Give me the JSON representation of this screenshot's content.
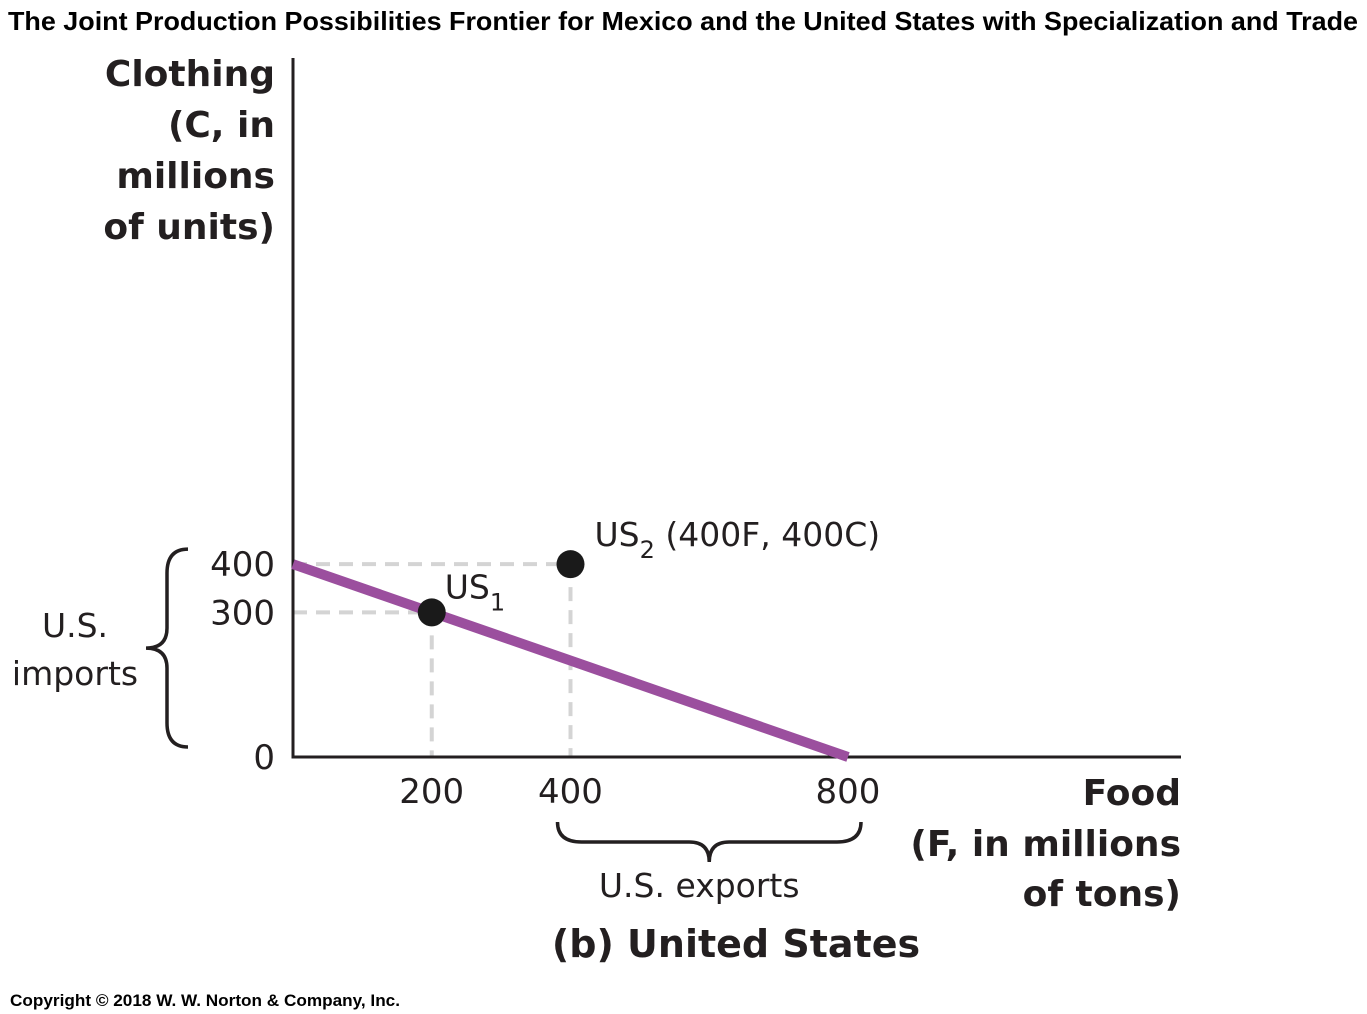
{
  "title": "The Joint Production Possibilities Frontier for Mexico and the United States with Specialization and Trade",
  "copyright": "Copyright © 2018 W. W. Norton & Company, Inc.",
  "colors": {
    "frontier": "#9b4f9e",
    "guide": "#d4d4d4",
    "axis": "#231f20",
    "point": "#1a1a1a"
  },
  "chart_data": {
    "type": "line",
    "panel_label": "(b) United States",
    "ylabel_lines": [
      "Clothing",
      "(C, in",
      "millions",
      "of units)"
    ],
    "xlabel_lines": [
      "Food",
      "(F, in millions",
      "of tons)"
    ],
    "x_ticks": [
      {
        "value": 200,
        "label": "200"
      },
      {
        "value": 400,
        "label": "400"
      },
      {
        "value": 800,
        "label": "800"
      }
    ],
    "y_ticks": [
      {
        "value": 0,
        "label": "0"
      },
      {
        "value": 300,
        "label": "300"
      },
      {
        "value": 400,
        "label": "400"
      }
    ],
    "xlim": [
      0,
      1280
    ],
    "ylim": [
      0,
      1450
    ],
    "frontier": {
      "x": [
        0,
        800
      ],
      "y": [
        400,
        0
      ]
    },
    "points": [
      {
        "id": "US1",
        "label_main": "US",
        "label_sub": "1",
        "label_suffix": "",
        "x": 200,
        "y": 300
      },
      {
        "id": "US2",
        "label_main": "US",
        "label_sub": "2",
        "label_suffix": " (400F, 400C)",
        "x": 400,
        "y": 400
      }
    ],
    "guides": [
      {
        "from": [
          0,
          400
        ],
        "to": [
          400,
          400
        ]
      },
      {
        "from": [
          400,
          400
        ],
        "to": [
          400,
          0
        ]
      },
      {
        "from": [
          0,
          300
        ],
        "to": [
          200,
          300
        ]
      },
      {
        "from": [
          200,
          300
        ],
        "to": [
          200,
          0
        ]
      }
    ],
    "braces": [
      {
        "id": "imports",
        "axis": "y",
        "range": [
          0,
          400
        ],
        "label_lines": [
          "U.S.",
          "imports"
        ]
      },
      {
        "id": "exports",
        "axis": "x",
        "range": [
          400,
          800
        ],
        "label_lines": [
          "U.S. exports"
        ]
      }
    ]
  }
}
